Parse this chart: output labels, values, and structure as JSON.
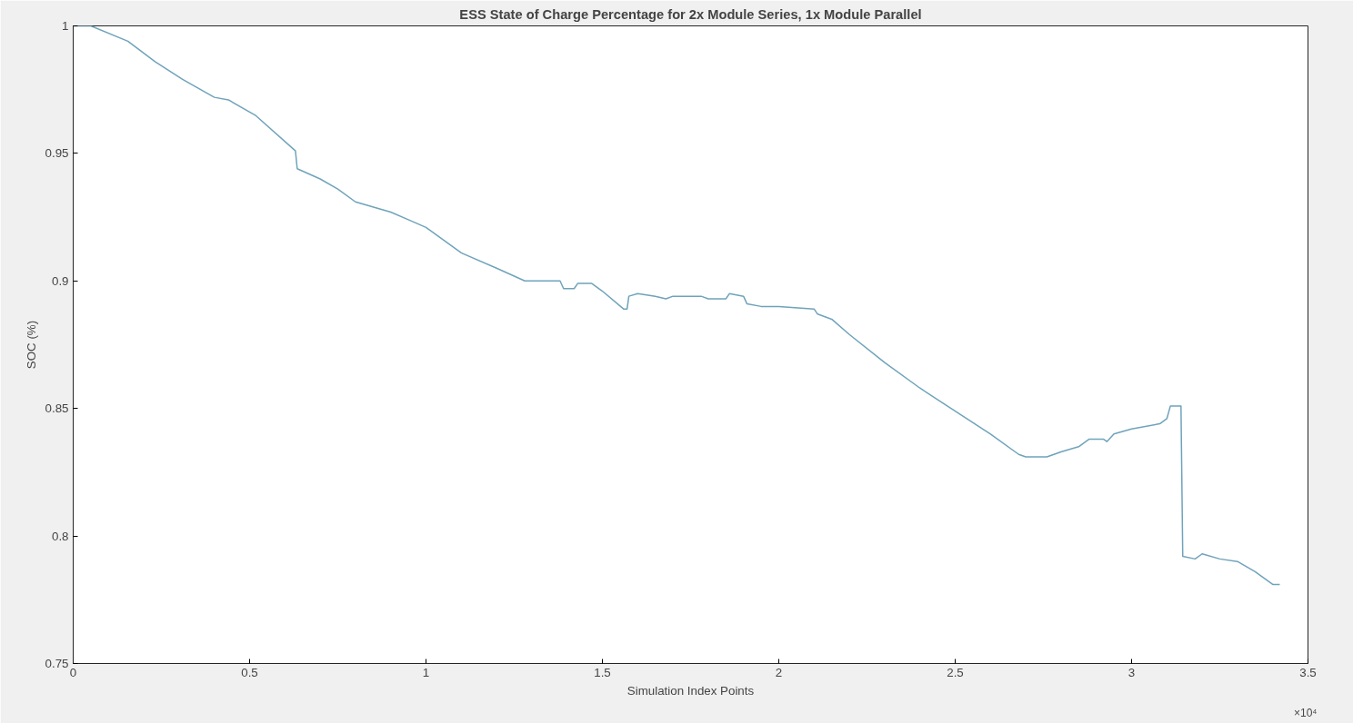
{
  "chart_data": {
    "type": "line",
    "title": "ESS State of Charge Percentage for 2x Module Series, 1x Module Parallel",
    "xlabel": "Simulation Index Points",
    "ylabel": "SOC (%)",
    "annotations": [
      "×10⁴"
    ],
    "xlim": [
      0,
      3.5
    ],
    "xticks": [
      0,
      0.5,
      1,
      1.5,
      2,
      2.5,
      3,
      3.5
    ],
    "ylim": [
      0.75,
      1
    ],
    "yticks": [
      0.75,
      0.8,
      0.85,
      0.9,
      0.95,
      1
    ],
    "grid": false,
    "marker": "none",
    "line_style": "solid",
    "series": [
      {
        "color": "#6fa3bb",
        "x": [
          0,
          0.05,
          0.155,
          0.232,
          0.31,
          0.4,
          0.44,
          0.516,
          0.63,
          0.635,
          0.7,
          0.75,
          0.8,
          0.9,
          0.95,
          1.0,
          1.05,
          1.1,
          1.2,
          1.28,
          1.3,
          1.38,
          1.39,
          1.42,
          1.43,
          1.47,
          1.5,
          1.56,
          1.57,
          1.575,
          1.6,
          1.65,
          1.68,
          1.7,
          1.78,
          1.8,
          1.85,
          1.86,
          1.9,
          1.91,
          1.95,
          2.0,
          2.1,
          2.11,
          2.15,
          2.2,
          2.3,
          2.4,
          2.5,
          2.6,
          2.68,
          2.7,
          2.76,
          2.8,
          2.85,
          2.88,
          2.92,
          2.93,
          2.95,
          3.0,
          3.08,
          3.1,
          3.11,
          3.14,
          3.145,
          3.18,
          3.2,
          3.25,
          3.3,
          3.35,
          3.4,
          3.42
        ],
        "values": [
          1.0,
          1.0,
          0.994,
          0.986,
          0.979,
          0.972,
          0.971,
          0.965,
          0.951,
          0.944,
          0.94,
          0.936,
          0.931,
          0.927,
          0.924,
          0.921,
          0.916,
          0.911,
          0.905,
          0.9,
          0.9,
          0.9,
          0.897,
          0.897,
          0.899,
          0.899,
          0.896,
          0.889,
          0.889,
          0.894,
          0.895,
          0.894,
          0.893,
          0.894,
          0.894,
          0.893,
          0.893,
          0.895,
          0.894,
          0.891,
          0.89,
          0.89,
          0.889,
          0.887,
          0.885,
          0.879,
          0.868,
          0.858,
          0.849,
          0.84,
          0.832,
          0.831,
          0.831,
          0.833,
          0.835,
          0.838,
          0.838,
          0.837,
          0.84,
          0.842,
          0.844,
          0.846,
          0.851,
          0.851,
          0.792,
          0.791,
          0.793,
          0.791,
          0.79,
          0.786,
          0.781,
          0.781
        ]
      }
    ]
  }
}
